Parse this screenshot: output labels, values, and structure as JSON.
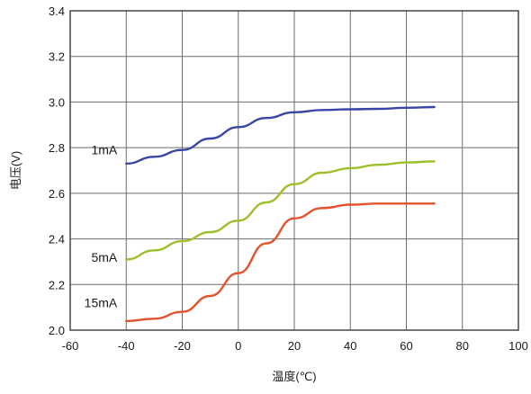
{
  "chart_data": {
    "type": "line",
    "xlabel": "温度(℃)",
    "ylabel": "电压(V)",
    "xlim": [
      -60,
      100
    ],
    "ylim": [
      2.0,
      3.4
    ],
    "xticks": [
      -60,
      -40,
      -20,
      0,
      20,
      40,
      60,
      80,
      100
    ],
    "xtick_labels": [
      "-60",
      "-40",
      "-20",
      "0",
      "20",
      "40",
      "60",
      "80",
      "100"
    ],
    "yticks": [
      2.0,
      2.2,
      2.4,
      2.6,
      2.8,
      3.0,
      3.2,
      3.4
    ],
    "ytick_labels": [
      "2.0",
      "2.2",
      "2.4",
      "2.6",
      "2.8",
      "3.0",
      "3.2",
      "3.4"
    ],
    "grid": true,
    "series": [
      {
        "name": "1mA",
        "color": "#3a45a8",
        "x": [
          -40,
          -30,
          -20,
          -10,
          0,
          10,
          20,
          30,
          40,
          50,
          60,
          70
        ],
        "y": [
          2.73,
          2.76,
          2.79,
          2.84,
          2.89,
          2.93,
          2.955,
          2.965,
          2.968,
          2.97,
          2.975,
          2.978
        ]
      },
      {
        "name": "5mA",
        "color": "#9dbf2a",
        "x": [
          -40,
          -30,
          -20,
          -10,
          0,
          10,
          20,
          30,
          40,
          50,
          60,
          70
        ],
        "y": [
          2.31,
          2.35,
          2.39,
          2.43,
          2.48,
          2.56,
          2.64,
          2.69,
          2.71,
          2.725,
          2.735,
          2.74
        ]
      },
      {
        "name": "15mA",
        "color": "#e5512a",
        "x": [
          -40,
          -30,
          -20,
          -10,
          0,
          10,
          20,
          30,
          40,
          50,
          60,
          70
        ],
        "y": [
          2.04,
          2.05,
          2.08,
          2.15,
          2.25,
          2.38,
          2.49,
          2.535,
          2.55,
          2.555,
          2.555,
          2.555
        ]
      }
    ]
  }
}
